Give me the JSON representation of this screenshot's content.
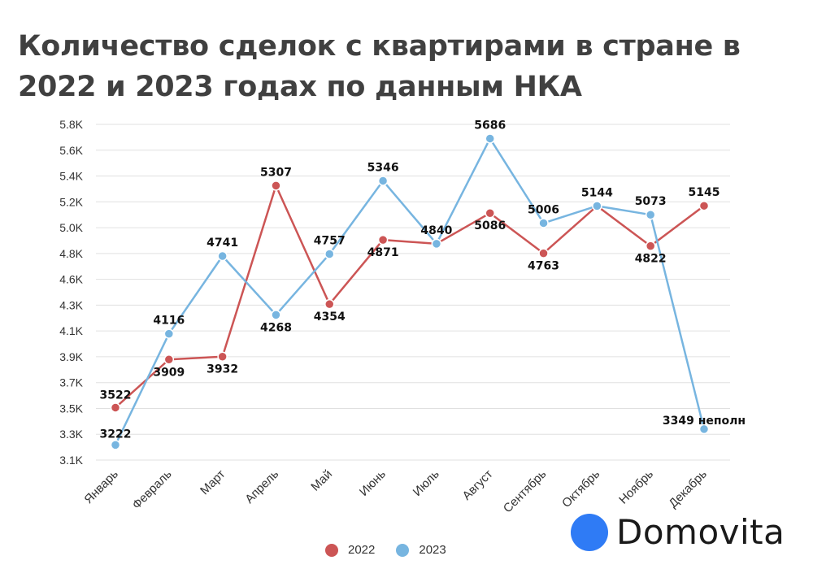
{
  "title": "Количество сделок с квартирами в стране в 2022 и 2023 годах по данным НКА",
  "brand": {
    "name": "Domovita",
    "icon": "brand-dot-icon",
    "color": "#2f7bf5"
  },
  "legend": [
    {
      "name": "2022",
      "color": "#cc5555"
    },
    {
      "name": "2023",
      "color": "#77b5e0"
    }
  ],
  "chart_data": {
    "type": "line",
    "title": "Количество сделок с квартирами в стране в 2022 и 2023 годах по данным НКА",
    "categories": [
      "Январь",
      "Февраль",
      "Март",
      "Апрель",
      "Май",
      "Июнь",
      "Июль",
      "Август",
      "Сентябрь",
      "Октябрь",
      "Ноябрь",
      "Декабрь"
    ],
    "y_ticks": [
      "3.1K",
      "3.3K",
      "3.5K",
      "3.7K",
      "3.9K",
      "4.1K",
      "4.3K",
      "4.6K",
      "4.8K",
      "5.0K",
      "5.2K",
      "5.4K",
      "5.6K",
      "5.8K"
    ],
    "ylim": [
      3100,
      5800
    ],
    "grid": true,
    "legend_position": "bottom",
    "series": [
      {
        "name": "2022",
        "color": "#cc5555",
        "values": [
          3522,
          3909,
          3932,
          5307,
          4354,
          4871,
          4840,
          5086,
          4763,
          5144,
          4822,
          5145
        ],
        "labels": [
          "3522",
          "3909",
          "3932",
          "5307",
          "4354",
          "4871",
          "",
          "5086",
          "4763",
          "",
          "4822",
          "5145"
        ]
      },
      {
        "name": "2023",
        "color": "#77b5e0",
        "values": [
          3222,
          4116,
          4741,
          4268,
          4757,
          5346,
          4840,
          5686,
          5006,
          5144,
          5073,
          3349
        ],
        "labels": [
          "3222",
          "4116",
          "4741",
          "4268",
          "4757",
          "5346",
          "4840",
          "5686",
          "5006",
          "5144",
          "5073",
          "3349 неполн"
        ]
      }
    ]
  }
}
